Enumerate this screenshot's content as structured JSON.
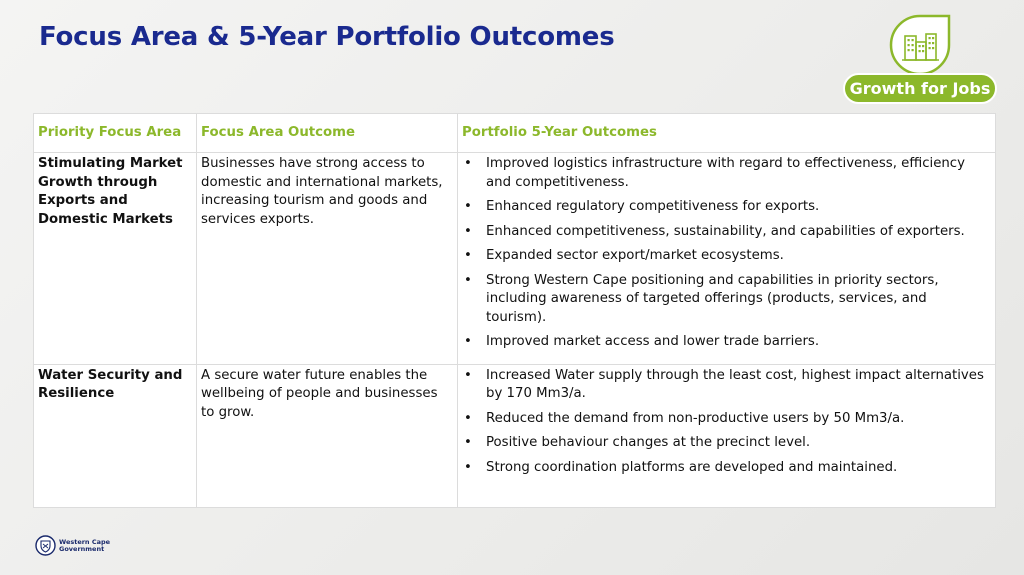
{
  "title": "Focus Area & 5-Year Portfolio Outcomes",
  "badge": {
    "label": "Growth for Jobs",
    "icon": "city-buildings-icon",
    "color": "#8cb82b"
  },
  "table": {
    "headers": [
      "Priority Focus Area",
      "Focus Area Outcome",
      "Portfolio 5-Year Outcomes"
    ],
    "rows": [
      {
        "area": "Stimulating Market Growth through Exports and Domestic Markets",
        "outcome": "Businesses have strong access to domestic and international markets, increasing tourism and goods and services exports.",
        "portfolio": [
          "Improved logistics infrastructure with regard to effectiveness, efficiency and competitiveness.",
          "Enhanced regulatory competitiveness for exports.",
          "Enhanced competitiveness, sustainability, and capabilities of exporters.",
          "Expanded sector export/market ecosystems.",
          "Strong Western Cape positioning and capabilities in priority sectors, including awareness of targeted offerings (products, services, and tourism).",
          "Improved market access and lower trade barriers."
        ]
      },
      {
        "area": "Water Security and Resilience",
        "outcome": "A secure water future enables the wellbeing of people and businesses to grow.",
        "portfolio": [
          "Increased Water supply through the least cost, highest impact alternatives by 170 Mm3/a.",
          "Reduced the demand from non-productive users by 50 Mm3/a.",
          "Positive behaviour changes at the precinct level.",
          "Strong coordination platforms are developed and maintained."
        ]
      }
    ]
  },
  "footer": {
    "logo_line1": "Western Cape",
    "logo_line2": "Government",
    "logo_icon": "coat-of-arms-icon"
  }
}
